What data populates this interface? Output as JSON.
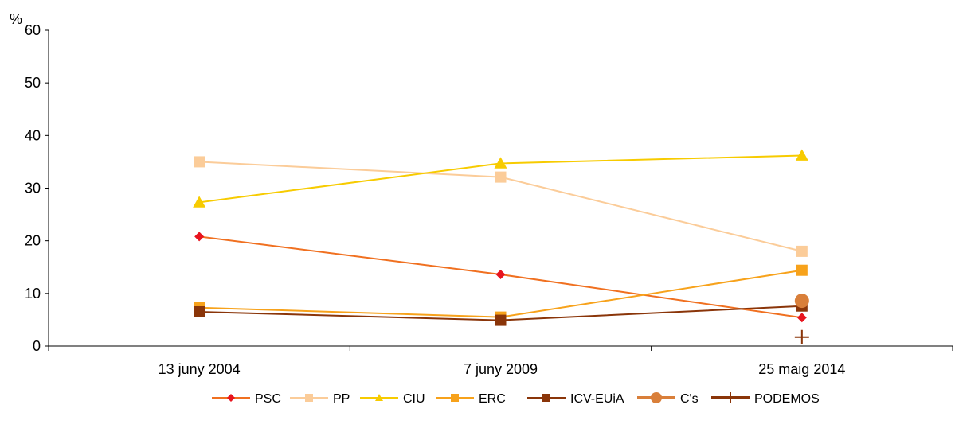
{
  "chart_data": {
    "type": "line",
    "title": "",
    "xlabel": "",
    "ylabel": "%",
    "ylim": [
      0,
      60
    ],
    "yticks": [
      0,
      10,
      20,
      30,
      40,
      50,
      60
    ],
    "categories": [
      "13 juny 2004",
      "7 juny 2009",
      "25 maig 2014"
    ],
    "legend_position": "bottom-right",
    "grid": false,
    "series": [
      {
        "name": "PSC",
        "color": "#f07020",
        "marker": "diamond",
        "marker_color": "#e8141e",
        "values": [
          20.8,
          13.6,
          5.4
        ]
      },
      {
        "name": "PP",
        "color": "#fbcc99",
        "marker": "square",
        "marker_color": "#fbcc99",
        "values": [
          35.0,
          32.1,
          18.0
        ]
      },
      {
        "name": "CIU",
        "color": "#f7cb00",
        "marker": "triangle",
        "marker_color": "#f7cb00",
        "values": [
          27.3,
          34.7,
          36.2
        ]
      },
      {
        "name": "ERC",
        "color": "#f7a21b",
        "marker": "square",
        "marker_color": "#f7a21b",
        "values": [
          7.3,
          5.5,
          14.4
        ]
      },
      {
        "name": "ICV-EUiA",
        "color": "#8a3509",
        "marker": "square",
        "marker_color": "#8a3509",
        "values": [
          6.5,
          4.9,
          7.6
        ]
      },
      {
        "name": "C's",
        "color": "#d97f3a",
        "marker": "circle",
        "marker_color": "#d97f3a",
        "values": [
          null,
          null,
          8.6
        ]
      },
      {
        "name": "PODEMOS",
        "color": "#8a3509",
        "marker": "plus",
        "marker_color": "#8a3509",
        "values": [
          null,
          null,
          1.7
        ]
      }
    ]
  }
}
